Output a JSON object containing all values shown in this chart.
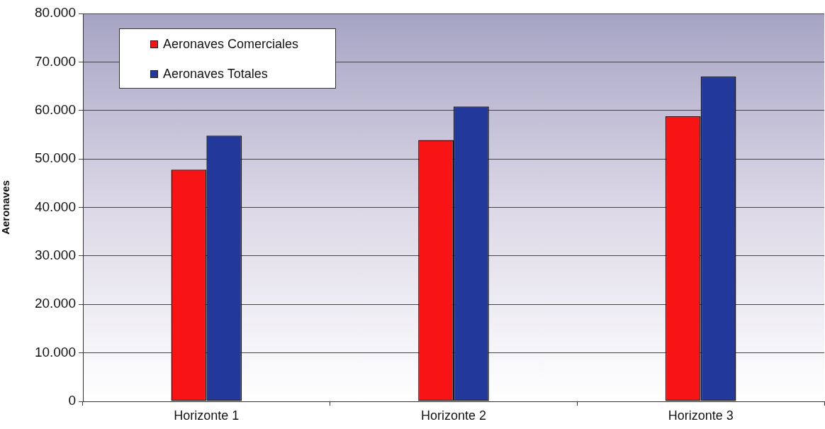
{
  "chart_data": {
    "type": "bar",
    "ylabel": "Aeronaves",
    "categories": [
      "Horizonte 1",
      "Horizonte 2",
      "Horizonte 3"
    ],
    "series": [
      {
        "name": "Aeronaves Comerciales",
        "color": "#f81414",
        "values": [
          47800,
          53900,
          58800
        ]
      },
      {
        "name": "Aeronaves Totales",
        "color": "#22389a",
        "values": [
          54800,
          60800,
          67000
        ]
      }
    ],
    "ylim": [
      0,
      80000
    ],
    "yticks": [
      0,
      {
        "value": 10000,
        "label": "10.000"
      },
      {
        "value": 20000,
        "label": "20.000"
      },
      {
        "value": 30000,
        "label": "30.000"
      },
      {
        "value": 40000,
        "label": "40.000"
      },
      {
        "value": 50000,
        "label": "50.000"
      },
      {
        "value": 60000,
        "label": "60.000"
      },
      {
        "value": 70000,
        "label": "70.000"
      },
      {
        "value": 80000,
        "label": "80.000"
      }
    ],
    "grid": "y",
    "legend": "top left"
  }
}
